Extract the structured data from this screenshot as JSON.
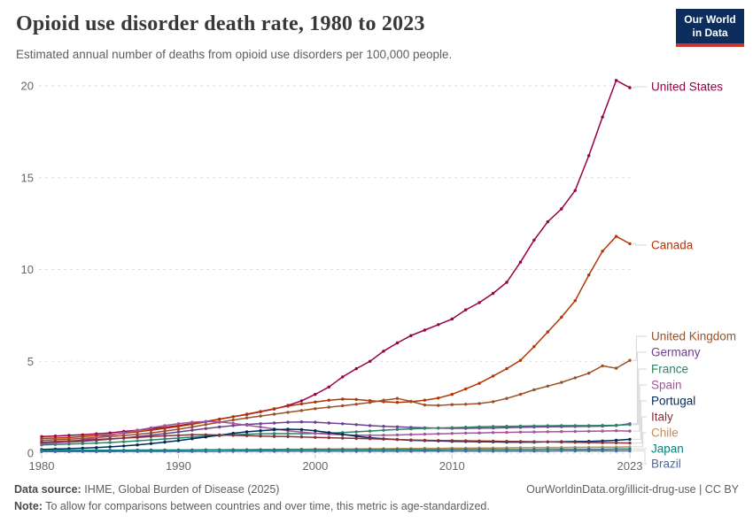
{
  "header": {
    "title": "Opioid use disorder death rate, 1980 to 2023",
    "subtitle": "Estimated annual number of deaths from opioid use disorders per 100,000 people.",
    "logo": {
      "line1": "Our World",
      "line2": "in Data",
      "bg_color": "#0d2e5c",
      "accent_color": "#d0342c"
    }
  },
  "chart_data": {
    "type": "line",
    "title": "Opioid use disorder death rate, 1980 to 2023",
    "xlabel": "",
    "ylabel": "Estimated annual deaths from opioid use disorders per 100,000 people",
    "ylim": [
      0,
      20
    ],
    "grid": "horizontal-dashed",
    "legend_position": "right-edge-labels",
    "x": [
      1980,
      1981,
      1982,
      1983,
      1984,
      1985,
      1986,
      1987,
      1988,
      1989,
      1990,
      1991,
      1992,
      1993,
      1994,
      1995,
      1996,
      1997,
      1998,
      1999,
      2000,
      2001,
      2002,
      2003,
      2004,
      2005,
      2006,
      2007,
      2008,
      2009,
      2010,
      2011,
      2012,
      2013,
      2014,
      2015,
      2016,
      2017,
      2018,
      2019,
      2020,
      2021,
      2022,
      2023
    ],
    "x_ticks": [
      1980,
      1990,
      2000,
      2010,
      2023
    ],
    "y_ticks": [
      0,
      5,
      10,
      15,
      20
    ],
    "series": [
      {
        "name": "United States",
        "color": "#970046",
        "values": [
          0.9,
          0.93,
          0.97,
          1.0,
          1.05,
          1.1,
          1.18,
          1.25,
          1.33,
          1.4,
          1.5,
          1.6,
          1.72,
          1.85,
          1.98,
          2.1,
          2.25,
          2.4,
          2.6,
          2.85,
          3.2,
          3.6,
          4.15,
          4.6,
          5.0,
          5.55,
          6.0,
          6.4,
          6.7,
          7.0,
          7.3,
          7.8,
          8.2,
          8.7,
          9.3,
          10.4,
          11.6,
          12.6,
          13.3,
          14.3,
          16.2,
          18.3,
          20.3,
          19.9
        ]
      },
      {
        "name": "Canada",
        "color": "#b13507",
        "values": [
          0.8,
          0.82,
          0.85,
          0.9,
          0.95,
          1.0,
          1.08,
          1.16,
          1.25,
          1.35,
          1.45,
          1.57,
          1.7,
          1.84,
          1.98,
          2.12,
          2.27,
          2.42,
          2.56,
          2.68,
          2.78,
          2.88,
          2.94,
          2.92,
          2.86,
          2.8,
          2.76,
          2.8,
          2.88,
          3.0,
          3.2,
          3.5,
          3.8,
          4.2,
          4.6,
          5.05,
          5.8,
          6.6,
          7.4,
          8.3,
          9.7,
          11.0,
          11.8,
          11.4
        ]
      },
      {
        "name": "United Kingdom",
        "color": "#9a5129",
        "values": [
          0.7,
          0.73,
          0.76,
          0.8,
          0.85,
          0.9,
          0.96,
          1.02,
          1.1,
          1.2,
          1.3,
          1.42,
          1.55,
          1.68,
          1.8,
          1.92,
          2.02,
          2.12,
          2.22,
          2.32,
          2.42,
          2.5,
          2.58,
          2.66,
          2.76,
          2.88,
          2.98,
          2.82,
          2.62,
          2.6,
          2.64,
          2.66,
          2.7,
          2.8,
          2.98,
          3.2,
          3.45,
          3.65,
          3.85,
          4.1,
          4.35,
          4.75,
          4.62,
          5.05
        ]
      },
      {
        "name": "Germany",
        "color": "#6d3e91",
        "values": [
          0.55,
          0.57,
          0.6,
          0.64,
          0.7,
          0.76,
          0.82,
          0.9,
          0.98,
          1.06,
          1.15,
          1.25,
          1.34,
          1.42,
          1.5,
          1.56,
          1.6,
          1.64,
          1.68,
          1.7,
          1.68,
          1.64,
          1.6,
          1.55,
          1.5,
          1.46,
          1.43,
          1.4,
          1.38,
          1.36,
          1.35,
          1.35,
          1.36,
          1.37,
          1.39,
          1.4,
          1.42,
          1.43,
          1.44,
          1.45,
          1.46,
          1.47,
          1.5,
          1.6
        ]
      },
      {
        "name": "France",
        "color": "#2c8465",
        "values": [
          0.45,
          0.47,
          0.49,
          0.52,
          0.55,
          0.58,
          0.62,
          0.67,
          0.72,
          0.77,
          0.82,
          0.87,
          0.92,
          0.96,
          1.0,
          1.03,
          1.05,
          1.06,
          1.06,
          1.06,
          1.07,
          1.09,
          1.12,
          1.16,
          1.2,
          1.25,
          1.29,
          1.32,
          1.35,
          1.37,
          1.39,
          1.41,
          1.43,
          1.45,
          1.46,
          1.47,
          1.48,
          1.49,
          1.5,
          1.5,
          1.5,
          1.51,
          1.52,
          1.55
        ]
      },
      {
        "name": "Spain",
        "color": "#a2559c",
        "values": [
          0.5,
          0.55,
          0.62,
          0.72,
          0.84,
          0.97,
          1.1,
          1.25,
          1.38,
          1.5,
          1.6,
          1.68,
          1.72,
          1.7,
          1.62,
          1.52,
          1.42,
          1.32,
          1.22,
          1.14,
          1.08,
          1.03,
          1.0,
          0.98,
          0.97,
          0.98,
          0.99,
          1.01,
          1.03,
          1.05,
          1.07,
          1.09,
          1.1,
          1.12,
          1.13,
          1.14,
          1.15,
          1.16,
          1.17,
          1.18,
          1.19,
          1.2,
          1.22,
          1.2
        ]
      },
      {
        "name": "Portugal",
        "color": "#00295b",
        "values": [
          0.2,
          0.22,
          0.24,
          0.27,
          0.3,
          0.34,
          0.39,
          0.45,
          0.52,
          0.6,
          0.68,
          0.78,
          0.88,
          0.98,
          1.08,
          1.16,
          1.22,
          1.27,
          1.3,
          1.28,
          1.22,
          1.12,
          1.02,
          0.92,
          0.84,
          0.78,
          0.74,
          0.7,
          0.68,
          0.66,
          0.64,
          0.63,
          0.62,
          0.61,
          0.6,
          0.6,
          0.6,
          0.61,
          0.62,
          0.63,
          0.64,
          0.66,
          0.7,
          0.75
        ]
      },
      {
        "name": "Italy",
        "color": "#883039",
        "values": [
          0.6,
          0.63,
          0.66,
          0.7,
          0.74,
          0.78,
          0.82,
          0.86,
          0.9,
          0.94,
          0.97,
          1.0,
          1.0,
          0.99,
          0.97,
          0.95,
          0.93,
          0.91,
          0.9,
          0.88,
          0.86,
          0.84,
          0.82,
          0.8,
          0.78,
          0.76,
          0.74,
          0.72,
          0.7,
          0.69,
          0.68,
          0.67,
          0.66,
          0.65,
          0.64,
          0.63,
          0.62,
          0.61,
          0.6,
          0.59,
          0.58,
          0.57,
          0.56,
          0.55
        ]
      },
      {
        "name": "Chile",
        "color": "#bc8e5a",
        "values": [
          0.12,
          0.12,
          0.13,
          0.13,
          0.14,
          0.14,
          0.15,
          0.15,
          0.16,
          0.16,
          0.17,
          0.17,
          0.18,
          0.18,
          0.19,
          0.19,
          0.2,
          0.2,
          0.21,
          0.21,
          0.22,
          0.22,
          0.23,
          0.23,
          0.24,
          0.24,
          0.25,
          0.25,
          0.26,
          0.26,
          0.27,
          0.27,
          0.28,
          0.28,
          0.29,
          0.3,
          0.3,
          0.31,
          0.31,
          0.32,
          0.32,
          0.33,
          0.33,
          0.34
        ]
      },
      {
        "name": "Japan",
        "color": "#00847e",
        "values": [
          0.15,
          0.15,
          0.15,
          0.16,
          0.16,
          0.16,
          0.16,
          0.17,
          0.17,
          0.17,
          0.17,
          0.17,
          0.18,
          0.18,
          0.18,
          0.18,
          0.18,
          0.18,
          0.19,
          0.19,
          0.19,
          0.19,
          0.19,
          0.19,
          0.19,
          0.19,
          0.19,
          0.19,
          0.19,
          0.19,
          0.2,
          0.2,
          0.2,
          0.2,
          0.2,
          0.2,
          0.2,
          0.21,
          0.21,
          0.21,
          0.21,
          0.21,
          0.22,
          0.22
        ]
      },
      {
        "name": "Brazil",
        "color": "#4c6a9c",
        "values": [
          0.08,
          0.08,
          0.08,
          0.08,
          0.08,
          0.08,
          0.09,
          0.09,
          0.09,
          0.09,
          0.09,
          0.09,
          0.09,
          0.09,
          0.1,
          0.1,
          0.1,
          0.1,
          0.1,
          0.1,
          0.1,
          0.1,
          0.1,
          0.1,
          0.1,
          0.1,
          0.1,
          0.1,
          0.11,
          0.11,
          0.11,
          0.11,
          0.11,
          0.11,
          0.11,
          0.11,
          0.11,
          0.11,
          0.12,
          0.12,
          0.12,
          0.12,
          0.12,
          0.12
        ]
      }
    ]
  },
  "footer": {
    "data_source_label": "Data source:",
    "data_source": "IHME, Global Burden of Disease (2025)",
    "citation": "OurWorldinData.org/illicit-drug-use | CC BY",
    "note_label": "Note:",
    "note": "To allow for comparisons between countries and over time, this metric is age-standardized."
  }
}
